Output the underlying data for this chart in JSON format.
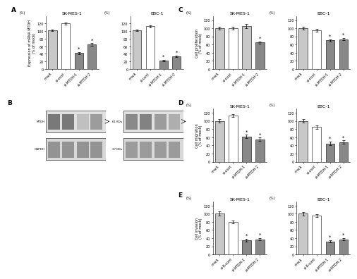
{
  "panel_A_SKMES": {
    "title": "SK-MES-1",
    "ylabel": "Expression of mRNA MTDH\n(% of mock)",
    "categories": [
      "mock",
      "si-cont",
      "si-MTDH-1",
      "si-MTDH-2"
    ],
    "values": [
      103,
      120,
      42,
      65
    ],
    "errors": [
      2,
      2,
      3,
      3
    ],
    "colors": [
      "#c8c8c8",
      "#ffffff",
      "#888888",
      "#888888"
    ],
    "ylim": [
      0,
      140
    ],
    "yticks": [
      0,
      20,
      40,
      60,
      80,
      100,
      120
    ],
    "star_idx": [
      2,
      3
    ]
  },
  "panel_A_EBC": {
    "title": "EBC-1",
    "ylabel": "Expression of mRNA MTDH\n(% of mock)",
    "categories": [
      "mock",
      "si-cont",
      "si-MTDH-1",
      "si-MTDH-2"
    ],
    "values": [
      102,
      113,
      22,
      33
    ],
    "errors": [
      2,
      3,
      2,
      2
    ],
    "colors": [
      "#c8c8c8",
      "#ffffff",
      "#888888",
      "#888888"
    ],
    "ylim": [
      0,
      140
    ],
    "yticks": [
      0,
      20,
      40,
      60,
      80,
      100,
      120
    ],
    "star_idx": [
      2,
      3
    ]
  },
  "panel_C_SKMES": {
    "title": "SK-MES-1",
    "ylabel": "Cell proliferation\n(% of mock)",
    "categories": [
      "mock",
      "si-cont",
      "si-MTDH-1",
      "si-MTDH-2"
    ],
    "values": [
      100,
      100,
      105,
      65
    ],
    "errors": [
      3,
      3,
      5,
      3
    ],
    "colors": [
      "#c8c8c8",
      "#ffffff",
      "#c8c8c8",
      "#888888"
    ],
    "ylim": [
      0,
      130
    ],
    "yticks": [
      0,
      20,
      40,
      60,
      80,
      100,
      120
    ],
    "star_idx": [
      3
    ]
  },
  "panel_C_EBC": {
    "title": "EBC-1",
    "ylabel": "Cell proliferation\n(% of mock)",
    "categories": [
      "mock",
      "si-cont",
      "si-MTDH-1",
      "si-MTDH-2"
    ],
    "values": [
      100,
      95,
      70,
      73
    ],
    "errors": [
      3,
      3,
      3,
      3
    ],
    "colors": [
      "#c8c8c8",
      "#ffffff",
      "#888888",
      "#888888"
    ],
    "ylim": [
      0,
      130
    ],
    "yticks": [
      0,
      20,
      40,
      60,
      80,
      100,
      120
    ],
    "star_idx": [
      2,
      3
    ]
  },
  "panel_D_SKMES": {
    "title": "SK-MES-1",
    "ylabel": "Cell migration\n(% of mock)",
    "categories": [
      "mock",
      "si-cont",
      "si-MTDH-1",
      "si-MTDH-2"
    ],
    "values": [
      100,
      113,
      62,
      55
    ],
    "errors": [
      4,
      4,
      4,
      4
    ],
    "colors": [
      "#c8c8c8",
      "#ffffff",
      "#888888",
      "#888888"
    ],
    "ylim": [
      0,
      130
    ],
    "yticks": [
      0,
      20,
      40,
      60,
      80,
      100,
      120
    ],
    "star_idx": [
      2,
      3
    ]
  },
  "panel_D_EBC": {
    "title": "EBC-1",
    "ylabel": "Cell migration\n(% of mock)",
    "categories": [
      "mock",
      "si-cont",
      "si-MTDH-1",
      "si-MTDH-2"
    ],
    "values": [
      100,
      85,
      45,
      48
    ],
    "errors": [
      4,
      4,
      4,
      4
    ],
    "colors": [
      "#c8c8c8",
      "#ffffff",
      "#888888",
      "#888888"
    ],
    "ylim": [
      0,
      130
    ],
    "yticks": [
      0,
      20,
      40,
      60,
      80,
      100,
      120
    ],
    "star_idx": [
      2,
      3
    ]
  },
  "panel_E_SKMES": {
    "title": "SK-MES-1",
    "ylabel": "Cell invasion\n(% of mock)",
    "categories": [
      "mock",
      "si-R-cont",
      "si-MTDH-1",
      "si-MTDH-2"
    ],
    "values": [
      100,
      80,
      35,
      37
    ],
    "errors": [
      5,
      4,
      3,
      3
    ],
    "colors": [
      "#c8c8c8",
      "#ffffff",
      "#888888",
      "#888888"
    ],
    "ylim": [
      0,
      130
    ],
    "yticks": [
      0,
      20,
      40,
      60,
      80,
      100,
      120
    ],
    "star_idx": [
      2,
      3
    ]
  },
  "panel_E_EBC": {
    "title": "EBC-1",
    "ylabel": "Cell invasion\n(% of mock)",
    "categories": [
      "mock",
      "si-R-cont",
      "si-MTDH-1",
      "si-MTDH-2"
    ],
    "values": [
      100,
      95,
      32,
      37
    ],
    "errors": [
      4,
      4,
      3,
      3
    ],
    "colors": [
      "#c8c8c8",
      "#ffffff",
      "#888888",
      "#888888"
    ],
    "ylim": [
      0,
      130
    ],
    "yticks": [
      0,
      20,
      40,
      60,
      80,
      100,
      120
    ],
    "star_idx": [
      2,
      3
    ]
  },
  "background": "#ffffff",
  "wb_SKMES": {
    "MTDH_bands": [
      0.75,
      0.75,
      0.35,
      0.55
    ],
    "GAPDH_bands": [
      0.7,
      0.7,
      0.7,
      0.7
    ]
  },
  "wb_EBC": {
    "MTDH_bands": [
      0.65,
      0.7,
      0.55,
      0.45
    ],
    "GAPDH_bands": [
      0.65,
      0.65,
      0.65,
      0.65
    ]
  }
}
